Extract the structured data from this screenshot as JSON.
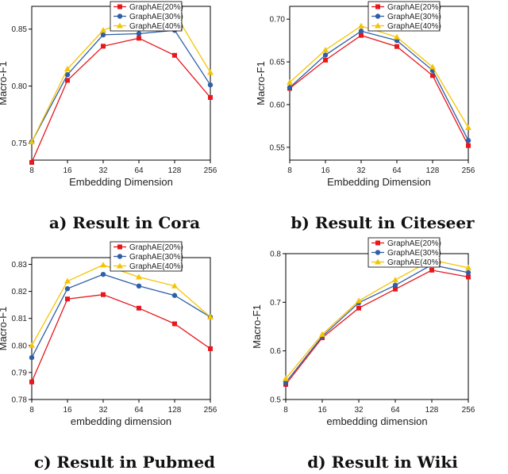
{
  "colors": {
    "s20": "#e8171c",
    "s30": "#2f5fa6",
    "s40": "#f5c400"
  },
  "chart_data": [
    {
      "type": "line",
      "caption": "a) Result in Cora",
      "xlabel": "Embedding Dimension",
      "ylabel": "Macro-F1",
      "categories": [
        "8",
        "16",
        "32",
        "64",
        "128",
        "256"
      ],
      "ylim": [
        0.735,
        0.87
      ],
      "yticks": [
        "0.75",
        "0.80",
        "0.85"
      ],
      "ytick_values": [
        0.75,
        0.8,
        0.85
      ],
      "legend": "top-right",
      "series": [
        {
          "name": "GraphAE(20%)",
          "values": [
            0.733,
            0.805,
            0.835,
            0.842,
            0.827,
            0.79
          ]
        },
        {
          "name": "GraphAE(30%)",
          "values": [
            0.751,
            0.81,
            0.845,
            0.846,
            0.849,
            0.801
          ]
        },
        {
          "name": "GraphAE(40%)",
          "values": [
            0.751,
            0.815,
            0.849,
            0.861,
            0.864,
            0.812
          ]
        }
      ]
    },
    {
      "type": "line",
      "caption": "b) Result in Citeseer",
      "xlabel": "Embedding Dimension",
      "ylabel": "Macro-F1",
      "categories": [
        "8",
        "16",
        "32",
        "64",
        "128",
        "256"
      ],
      "ylim": [
        0.535,
        0.715
      ],
      "yticks": [
        "0.55",
        "0.60",
        "0.65",
        "0.70"
      ],
      "ytick_values": [
        0.55,
        0.6,
        0.65,
        0.7
      ],
      "legend": "top-right",
      "series": [
        {
          "name": "GraphAE(20%)",
          "values": [
            0.619,
            0.652,
            0.681,
            0.668,
            0.634,
            0.552
          ]
        },
        {
          "name": "GraphAE(30%)",
          "values": [
            0.62,
            0.658,
            0.686,
            0.675,
            0.64,
            0.558
          ]
        },
        {
          "name": "GraphAE(40%)",
          "values": [
            0.626,
            0.664,
            0.692,
            0.679,
            0.644,
            0.573
          ]
        }
      ]
    },
    {
      "type": "line",
      "caption": "c) Result in Pubmed",
      "xlabel": "embedding dimension",
      "ylabel": "Macro-F1",
      "categories": [
        "8",
        "16",
        "32",
        "64",
        "128",
        "256"
      ],
      "ylim": [
        0.78,
        0.8325
      ],
      "yticks": [
        "0.78",
        "0.79",
        "0.80",
        "0.81",
        "0.82",
        "0.83"
      ],
      "ytick_values": [
        0.78,
        0.79,
        0.8,
        0.81,
        0.82,
        0.83
      ],
      "legend": "top-right",
      "series": [
        {
          "name": "GraphAE(20%)",
          "values": [
            0.7865,
            0.8172,
            0.8188,
            0.8138,
            0.808,
            0.7988
          ]
        },
        {
          "name": "GraphAE(30%)",
          "values": [
            0.7955,
            0.821,
            0.8263,
            0.822,
            0.8185,
            0.8105
          ]
        },
        {
          "name": "GraphAE(40%)",
          "values": [
            0.8,
            0.8238,
            0.8298,
            0.8253,
            0.822,
            0.8105
          ]
        }
      ]
    },
    {
      "type": "line",
      "caption": "d) Result in Wiki",
      "xlabel": "embedding dimension",
      "ylabel": "Macro-F1",
      "categories": [
        "8",
        "16",
        "32",
        "64",
        "128",
        "256"
      ],
      "ylim": [
        0.5,
        0.8
      ],
      "yticks": [
        "0.5",
        "0.6",
        "0.7",
        "0.8"
      ],
      "ytick_values": [
        0.5,
        0.6,
        0.7,
        0.8
      ],
      "legend": "top-right",
      "series": [
        {
          "name": "GraphAE(20%)",
          "values": [
            0.531,
            0.627,
            0.688,
            0.727,
            0.766,
            0.752
          ]
        },
        {
          "name": "GraphAE(30%)",
          "values": [
            0.535,
            0.63,
            0.699,
            0.735,
            0.777,
            0.761
          ]
        },
        {
          "name": "GraphAE(40%)",
          "values": [
            0.543,
            0.634,
            0.703,
            0.746,
            0.787,
            0.771
          ]
        }
      ]
    }
  ]
}
